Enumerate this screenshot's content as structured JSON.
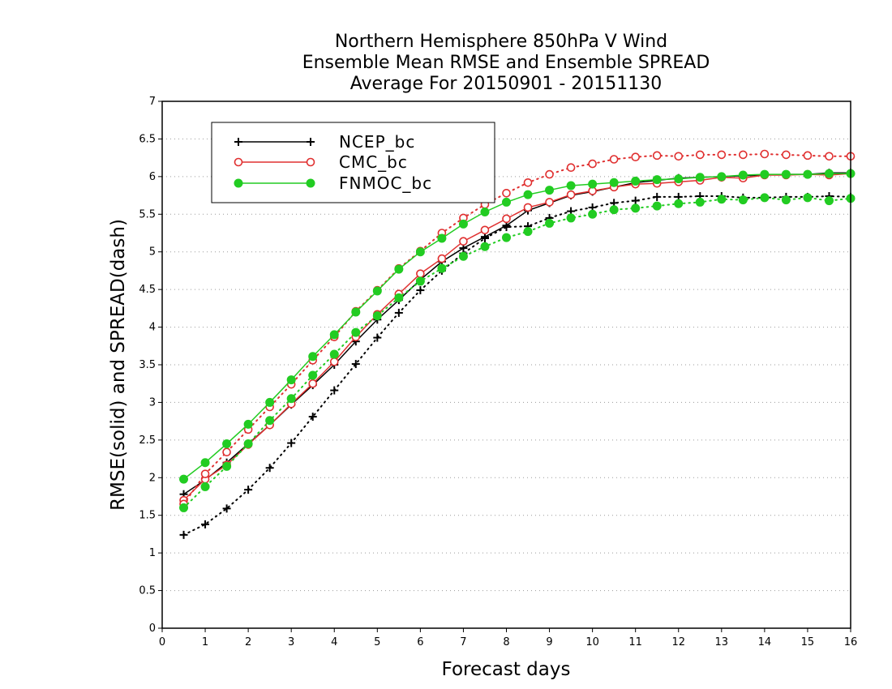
{
  "chart_data": {
    "type": "line",
    "title": [
      "Northern Hemisphere 850hPa V Wind",
      "Ensemble Mean RMSE and Ensemble SPREAD",
      "Average For 20150901 - 20151130"
    ],
    "xlabel": "Forecast days",
    "ylabel": "RMSE(solid) and SPREAD(dash)",
    "xlim": [
      0,
      16
    ],
    "ylim": [
      0,
      7
    ],
    "xticks": [
      "0",
      "1",
      "2",
      "3",
      "4",
      "5",
      "6",
      "7",
      "8",
      "9",
      "10",
      "11",
      "12",
      "13",
      "14",
      "15",
      "16"
    ],
    "yticks": [
      "0",
      "0.5",
      "1",
      "1.5",
      "2",
      "2.5",
      "3",
      "3.5",
      "4",
      "4.5",
      "5",
      "5.5",
      "6",
      "6.5",
      "7"
    ],
    "grid": "horizontal dotted",
    "legend_position": "top-left",
    "x": [
      0.5,
      1,
      1.5,
      2,
      2.5,
      3,
      3.5,
      4,
      4.5,
      5,
      5.5,
      6,
      6.5,
      7,
      7.5,
      8,
      8.5,
      9,
      9.5,
      10,
      10.5,
      11,
      11.5,
      12,
      12.5,
      13,
      13.5,
      14,
      14.5,
      15,
      15.5,
      16
    ],
    "series": [
      {
        "name": "NCEP_bc",
        "color": "#000000",
        "marker": "plus",
        "rmse": [
          1.78,
          1.97,
          2.2,
          2.45,
          2.7,
          2.97,
          3.23,
          3.5,
          3.81,
          4.1,
          4.36,
          4.63,
          4.87,
          5.05,
          5.2,
          5.35,
          5.55,
          5.65,
          5.75,
          5.8,
          5.86,
          5.92,
          5.95,
          5.98,
          5.99,
          6.0,
          6.01,
          6.02,
          6.03,
          6.03,
          6.05,
          6.05
        ],
        "spread": [
          1.24,
          1.38,
          1.59,
          1.84,
          2.13,
          2.46,
          2.81,
          3.16,
          3.51,
          3.86,
          4.19,
          4.49,
          4.75,
          4.98,
          5.18,
          5.33,
          5.34,
          5.45,
          5.54,
          5.59,
          5.65,
          5.68,
          5.73,
          5.73,
          5.74,
          5.74,
          5.72,
          5.72,
          5.73,
          5.73,
          5.74,
          5.73
        ]
      },
      {
        "name": "CMC_bc",
        "color": "#e03030",
        "marker": "open-circle",
        "rmse": [
          1.7,
          1.98,
          2.17,
          2.44,
          2.7,
          2.98,
          3.25,
          3.54,
          3.87,
          4.17,
          4.44,
          4.71,
          4.91,
          5.14,
          5.29,
          5.44,
          5.59,
          5.66,
          5.76,
          5.81,
          5.86,
          5.9,
          5.91,
          5.93,
          5.95,
          5.99,
          5.98,
          6.02,
          6.02,
          6.03,
          6.02,
          6.04
        ],
        "spread": [
          1.65,
          2.05,
          2.34,
          2.64,
          2.94,
          3.24,
          3.56,
          3.87,
          4.21,
          4.49,
          4.78,
          5.01,
          5.25,
          5.45,
          5.63,
          5.78,
          5.92,
          6.03,
          6.12,
          6.17,
          6.23,
          6.26,
          6.28,
          6.27,
          6.29,
          6.29,
          6.29,
          6.3,
          6.29,
          6.28,
          6.27,
          6.27
        ]
      },
      {
        "name": "FNMOC_bc",
        "color": "#22cc22",
        "marker": "filled-circle",
        "rmse": [
          1.98,
          2.2,
          2.45,
          2.71,
          3.0,
          3.3,
          3.61,
          3.9,
          4.2,
          4.48,
          4.77,
          5.0,
          5.18,
          5.37,
          5.53,
          5.66,
          5.76,
          5.82,
          5.88,
          5.9,
          5.92,
          5.94,
          5.96,
          5.97,
          5.99,
          6.0,
          6.02,
          6.03,
          6.03,
          6.03,
          6.04,
          6.04
        ],
        "spread": [
          1.6,
          1.88,
          2.15,
          2.45,
          2.76,
          3.05,
          3.36,
          3.64,
          3.93,
          4.15,
          4.39,
          4.61,
          4.78,
          4.94,
          5.07,
          5.19,
          5.27,
          5.38,
          5.45,
          5.5,
          5.56,
          5.58,
          5.61,
          5.64,
          5.66,
          5.7,
          5.69,
          5.72,
          5.69,
          5.72,
          5.68,
          5.71
        ]
      }
    ]
  }
}
